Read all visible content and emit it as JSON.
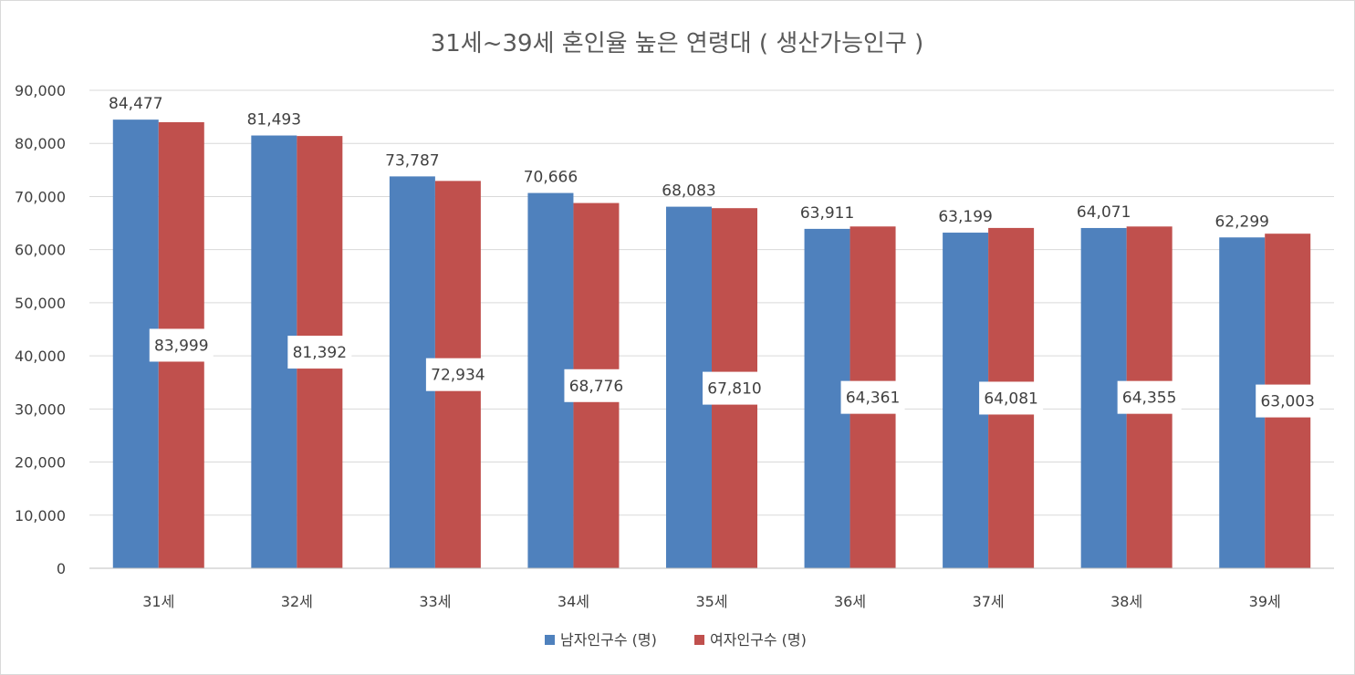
{
  "chart_data": {
    "type": "bar",
    "title": "31세~39세 혼인율 높은 연령대 ( 생산가능인구 )",
    "xlabel": "",
    "ylabel": "",
    "categories": [
      "31세",
      "32세",
      "33세",
      "34세",
      "35세",
      "36세",
      "37세",
      "38세",
      "39세"
    ],
    "series": [
      {
        "name": "남자인구수 (명)",
        "color": "#4f81bd",
        "values": [
          84477,
          81493,
          73787,
          70666,
          68083,
          63911,
          63199,
          64071,
          62299
        ],
        "labels": [
          "84,477",
          "81,493",
          "73,787",
          "70,666",
          "68,083",
          "63,911",
          "63,199",
          "64,071",
          "62,299"
        ]
      },
      {
        "name": "여자인구수 (명)",
        "color": "#c0504d",
        "values": [
          83999,
          81392,
          72934,
          68776,
          67810,
          64361,
          64081,
          64355,
          63003
        ],
        "labels": [
          "83,999",
          "81,392",
          "72,934",
          "68,776",
          "67,810",
          "64,361",
          "64,081",
          "64,355",
          "63,003"
        ]
      }
    ],
    "ylim": [
      0,
      90000
    ],
    "yticks": [
      0,
      10000,
      20000,
      30000,
      40000,
      50000,
      60000,
      70000,
      80000,
      90000
    ],
    "ytick_labels": [
      "0",
      "10,000",
      "20,000",
      "30,000",
      "40,000",
      "50,000",
      "60,000",
      "70,000",
      "80,000",
      "90,000"
    ],
    "grid": true,
    "legend_position": "bottom"
  }
}
